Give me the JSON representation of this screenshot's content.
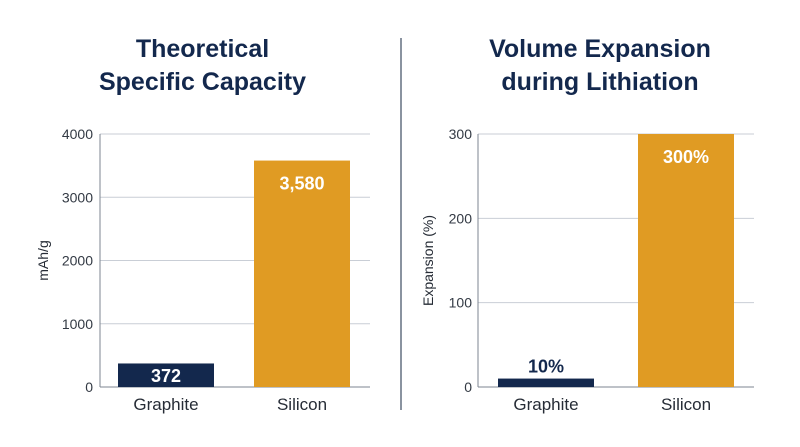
{
  "chart_data": [
    {
      "type": "bar",
      "title": "Theoretical\nSpecific Capacity",
      "xlabel": "",
      "ylabel": "mAh/g",
      "ylim": [
        0,
        4000
      ],
      "yticks": [
        0,
        1000,
        2000,
        3000,
        4000
      ],
      "grid": true,
      "categories": [
        "Graphite",
        "Silicon"
      ],
      "values": [
        372,
        3580
      ],
      "data_labels": [
        "372",
        "3,580"
      ],
      "colors": [
        "#13284d",
        "#e09b23"
      ],
      "data_label_colors": [
        "#ffffff",
        "#ffffff"
      ],
      "label_position": [
        "inside",
        "inside"
      ]
    },
    {
      "type": "bar",
      "title": "Volume Expansion\nduring Lithiation",
      "xlabel": "",
      "ylabel": "Expansion (%)",
      "ylim": [
        0,
        300
      ],
      "yticks": [
        0,
        100,
        200,
        300
      ],
      "grid": true,
      "categories": [
        "Graphite",
        "Silicon"
      ],
      "values": [
        10,
        300
      ],
      "data_labels": [
        "10%",
        "300%"
      ],
      "colors": [
        "#13284d",
        "#e09b23"
      ],
      "data_label_colors": [
        "#13284d",
        "#ffffff"
      ],
      "label_position": [
        "above",
        "inside"
      ]
    }
  ]
}
